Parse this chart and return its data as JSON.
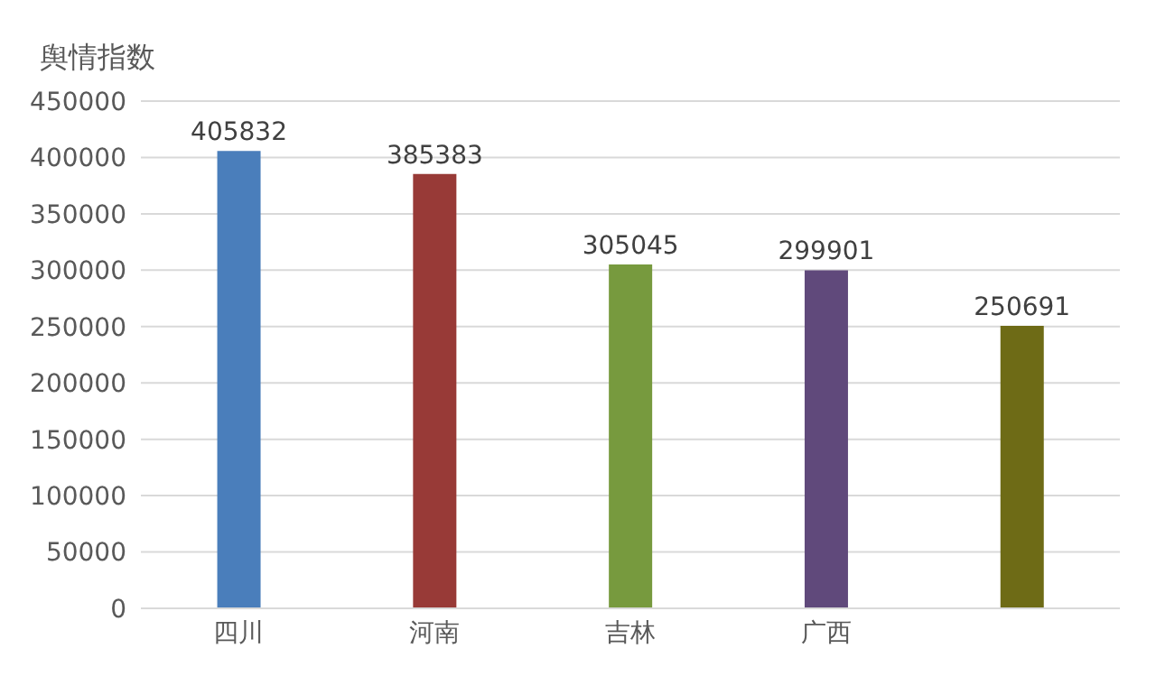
{
  "chart_data": {
    "type": "bar",
    "ylabel": "舆情指数",
    "categories": [
      "四川",
      "河南",
      "吉林",
      "广西",
      null
    ],
    "values": [
      405832,
      385383,
      305045,
      299901,
      250691
    ],
    "colors": [
      "#4a7ebb",
      "#983a37",
      "#779a3e",
      "#60497b",
      "#6e6b16"
    ],
    "ylim": [
      0,
      450000
    ],
    "yticks": [
      0,
      50000,
      100000,
      150000,
      200000,
      250000,
      300000,
      350000,
      400000,
      450000
    ],
    "grid": "y",
    "legend": false,
    "data_labels": true
  }
}
